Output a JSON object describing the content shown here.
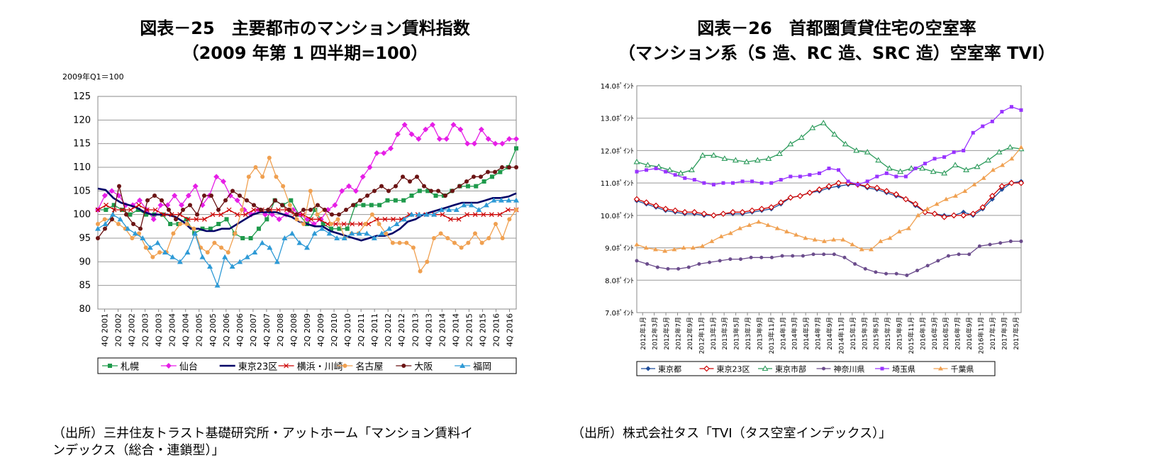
{
  "left": {
    "title1": "図表－25　主要都市のマンション賃料指数",
    "title2": "（2009 年第 1 四半期=100）",
    "unit": "2009年Q1＝100",
    "source_line1": "（出所）三井住友トラスト基礎研究所・アットホーム「マンション賃料イ",
    "source_line2": "ンデックス（総合・連鎖型）」"
  },
  "right": {
    "title1": "図表－26　首都圏賃貸住宅の空室率",
    "title2": "（マンション系（S 造、RC 造、SRC 造）空室率 TVI）",
    "source": "（出所）株式会社タス「TVI（タス空室インデックス）」"
  },
  "chart_data": [
    {
      "type": "line",
      "ylim": [
        80,
        125
      ],
      "yticks": [
        "80",
        "85",
        "90",
        "95",
        "100",
        "105",
        "110",
        "115",
        "120",
        "125"
      ],
      "xticks": [
        "4Q 2001",
        "2Q 2002",
        "4Q 2002",
        "2Q 2003",
        "4Q 2003",
        "2Q 2004",
        "4Q 2004",
        "2Q 2005",
        "4Q 2005",
        "2Q 2006",
        "4Q 2006",
        "2Q 2007",
        "4Q 2007",
        "2Q 2008",
        "4Q 2008",
        "2Q 2009",
        "4Q 2009",
        "2Q 2010",
        "4Q 2010",
        "2Q 2011",
        "4Q 2011",
        "2Q 2012",
        "4Q 2012",
        "2Q 2013",
        "4Q 2013",
        "2Q 2014",
        "4Q 2014",
        "2Q 2015",
        "4Q 2015",
        "2Q 2016",
        "4Q 2016"
      ],
      "grid": true,
      "legend_position": "bottom",
      "series": [
        {
          "name": "札幌",
          "color": "#1e9a4b",
          "marker": "square",
          "values": [
            101,
            101,
            102,
            101,
            100,
            101,
            100,
            100,
            100,
            98,
            98,
            99,
            96,
            97,
            97,
            98,
            99,
            96,
            95,
            95,
            97,
            99,
            103,
            102,
            103,
            100,
            98,
            101,
            98,
            97,
            97,
            97,
            102,
            102,
            102,
            102,
            103,
            103,
            103,
            104,
            105,
            105,
            104,
            104,
            105,
            106,
            106,
            106,
            107,
            108,
            109,
            110,
            114
          ]
        },
        {
          "name": "仙台",
          "color": "#e61ee6",
          "marker": "diamond",
          "values": [
            101,
            104,
            105,
            104,
            102,
            102,
            103,
            101,
            99,
            102,
            102,
            104,
            102,
            104,
            106,
            102,
            104,
            108,
            107,
            104,
            103,
            101,
            100,
            101,
            100,
            100,
            99,
            100,
            101,
            100,
            99,
            98,
            99,
            101,
            102,
            105,
            106,
            105,
            108,
            110,
            113,
            113,
            114,
            117,
            119,
            117,
            116,
            118,
            119,
            116,
            116,
            119,
            118,
            115,
            115,
            118,
            116,
            115,
            115,
            116,
            116
          ]
        },
        {
          "name": "東京23区",
          "color": "#000066",
          "marker": "none",
          "values": [
            105.5,
            105.2,
            103.5,
            102.5,
            102,
            101.5,
            100.5,
            100,
            100,
            100,
            99.5,
            98.5,
            97,
            97,
            96.5,
            96.5,
            97,
            97,
            98,
            99,
            100,
            100.5,
            100.5,
            100.5,
            100,
            99.5,
            98.5,
            98,
            97.5,
            97.5,
            96.5,
            96,
            95.5,
            95,
            94.5,
            95,
            95.5,
            95.5,
            96,
            97,
            98.5,
            99,
            100,
            100.5,
            101,
            101.5,
            102,
            102.5,
            102.5,
            102.5,
            103,
            103.5,
            103.5,
            103.8,
            104.5
          ]
        },
        {
          "name": "横浜・川崎",
          "color": "#cc0000",
          "marker": "x",
          "values": [
            101,
            102,
            101,
            101,
            101,
            102,
            101,
            101,
            100,
            100,
            100,
            99,
            99,
            99,
            100,
            100,
            101,
            100,
            100,
            101,
            101,
            101,
            101,
            101,
            100,
            100,
            99,
            99,
            98,
            98,
            98,
            98,
            98,
            98,
            99,
            99,
            99,
            99,
            100,
            100,
            100,
            100,
            100,
            99,
            99,
            100,
            100,
            100,
            100,
            100,
            101,
            101
          ]
        },
        {
          "name": "名古屋",
          "color": "#f0a050",
          "marker": "circle",
          "values": [
            98,
            99,
            99,
            98,
            97,
            95,
            96,
            93,
            91,
            92,
            92,
            96,
            98,
            98,
            97,
            93,
            92,
            94,
            93,
            92,
            96,
            101,
            108,
            110,
            108,
            112,
            108,
            106,
            102,
            99,
            98,
            105,
            100,
            101,
            98,
            99,
            95,
            96,
            96,
            98,
            100,
            98,
            96,
            94,
            94,
            94,
            93,
            88,
            90,
            95,
            96,
            95,
            94,
            93,
            94,
            96,
            94,
            95,
            98,
            95,
            99,
            101
          ]
        },
        {
          "name": "大阪",
          "color": "#6b1414",
          "marker": "circle",
          "values": [
            95,
            97,
            99,
            106,
            100,
            98,
            97,
            103,
            104,
            103,
            101,
            99,
            101,
            102,
            100,
            104,
            104,
            101,
            103,
            105,
            104,
            103,
            102,
            101,
            101,
            103,
            102,
            101,
            100,
            101,
            101,
            102,
            101,
            100,
            100,
            101,
            102,
            103,
            104,
            105,
            106,
            105,
            106,
            108,
            107,
            108,
            106,
            105,
            105,
            104,
            105,
            106,
            107,
            108,
            108,
            109,
            109,
            110,
            110,
            110
          ]
        },
        {
          "name": "福岡",
          "color": "#2e9ad6",
          "marker": "triangle",
          "values": [
            97,
            98,
            100,
            99,
            97,
            96,
            95,
            93,
            94,
            92,
            91,
            90,
            92,
            96,
            91,
            89,
            85,
            91,
            89,
            90,
            91,
            92,
            94,
            93,
            90,
            95,
            96,
            94,
            93,
            96,
            97,
            96,
            95,
            95,
            96,
            96,
            96,
            95,
            96,
            97,
            98,
            99,
            100,
            100,
            100,
            100,
            101,
            101,
            101,
            102,
            102,
            101,
            102,
            103,
            103,
            103,
            103
          ]
        }
      ]
    },
    {
      "type": "line",
      "ylim": [
        7.0,
        14.0
      ],
      "yticks": [
        "7.0ﾎﾟｲﾝﾄ",
        "8.0ﾎﾟｲﾝﾄ",
        "9.0ﾎﾟｲﾝﾄ",
        "10.0ﾎﾟｲﾝﾄ",
        "11.0ﾎﾟｲﾝﾄ",
        "12.0ﾎﾟｲﾝﾄ",
        "13.0ﾎﾟｲﾝﾄ",
        "14.0ﾎﾟｲﾝﾄ"
      ],
      "xticks": [
        "2012年1月",
        "2012年3月",
        "2012年5月",
        "2012年7月",
        "2012年9月",
        "2012年11月",
        "2013年1月",
        "2013年3月",
        "2013年5月",
        "2013年7月",
        "2013年9月",
        "2013年11月",
        "2014年1月",
        "2014年3月",
        "2014年5月",
        "2014年7月",
        "2014年9月",
        "2014年11月",
        "2015年1月",
        "2015年3月",
        "2015年5月",
        "2015年7月",
        "2015年9月",
        "2015年11月",
        "2016年1月",
        "2016年3月",
        "2016年5月",
        "2016年7月",
        "2016年9月",
        "2016年11月",
        "2017年1月",
        "2017年3月",
        "2017年5月"
      ],
      "grid": true,
      "legend_position": "bottom",
      "series": [
        {
          "name": "東京都",
          "color": "#1f4e9c",
          "marker": "diamond",
          "values": [
            10.45,
            10.35,
            10.25,
            10.15,
            10.1,
            10.05,
            10.05,
            10.0,
            10.0,
            10.05,
            10.05,
            10.05,
            10.1,
            10.15,
            10.2,
            10.35,
            10.55,
            10.6,
            10.7,
            10.75,
            10.85,
            10.9,
            10.95,
            10.95,
            10.85,
            10.8,
            10.7,
            10.6,
            10.5,
            10.3,
            10.1,
            10.05,
            10.0,
            10.0,
            10.1,
            10.0,
            10.2,
            10.5,
            10.8,
            11.0,
            11.05
          ]
        },
        {
          "name": "東京23区",
          "color": "#cc0000",
          "marker": "diamond-open",
          "values": [
            10.5,
            10.4,
            10.3,
            10.2,
            10.15,
            10.1,
            10.1,
            10.05,
            10.0,
            10.05,
            10.1,
            10.1,
            10.15,
            10.2,
            10.25,
            10.4,
            10.55,
            10.6,
            10.7,
            10.8,
            10.9,
            11.0,
            11.0,
            10.95,
            10.9,
            10.85,
            10.75,
            10.65,
            10.5,
            10.35,
            10.1,
            10.05,
            9.95,
            10.0,
            10.0,
            10.05,
            10.25,
            10.6,
            10.9,
            11.0,
            11.0
          ]
        },
        {
          "name": "東京市部",
          "color": "#2a9a5a",
          "marker": "triangle-open",
          "values": [
            11.65,
            11.55,
            11.5,
            11.4,
            11.3,
            11.4,
            11.85,
            11.85,
            11.75,
            11.7,
            11.65,
            11.7,
            11.75,
            11.9,
            12.2,
            12.4,
            12.7,
            12.85,
            12.5,
            12.2,
            12.0,
            11.95,
            11.7,
            11.45,
            11.35,
            11.45,
            11.45,
            11.35,
            11.3,
            11.55,
            11.4,
            11.5,
            11.7,
            11.95,
            12.1,
            12.05
          ]
        },
        {
          "name": "神奈川県",
          "color": "#6b4c8c",
          "marker": "circle",
          "values": [
            8.6,
            8.5,
            8.4,
            8.35,
            8.35,
            8.4,
            8.5,
            8.55,
            8.6,
            8.65,
            8.65,
            8.7,
            8.7,
            8.7,
            8.75,
            8.75,
            8.75,
            8.8,
            8.8,
            8.8,
            8.7,
            8.5,
            8.35,
            8.25,
            8.2,
            8.2,
            8.15,
            8.3,
            8.45,
            8.6,
            8.75,
            8.8,
            8.8,
            9.05,
            9.1,
            9.15,
            9.2,
            9.2
          ]
        },
        {
          "name": "埼玉県",
          "color": "#9933ff",
          "marker": "square",
          "values": [
            11.35,
            11.4,
            11.45,
            11.35,
            11.25,
            11.15,
            11.1,
            11.0,
            10.95,
            11.0,
            11.0,
            11.05,
            11.05,
            11.0,
            11.0,
            11.1,
            11.2,
            11.2,
            11.25,
            11.3,
            11.45,
            11.4,
            11.05,
            10.95,
            11.05,
            11.2,
            11.3,
            11.2,
            11.2,
            11.45,
            11.6,
            11.75,
            11.8,
            11.95,
            12.0,
            12.55,
            12.75,
            12.9,
            13.2,
            13.35,
            13.25
          ]
        },
        {
          "name": "千葉県",
          "color": "#f0a050",
          "marker": "triangle",
          "values": [
            9.1,
            9.0,
            8.95,
            8.9,
            8.95,
            9.0,
            9.0,
            9.05,
            9.2,
            9.35,
            9.45,
            9.6,
            9.7,
            9.8,
            9.7,
            9.6,
            9.5,
            9.4,
            9.3,
            9.25,
            9.2,
            9.25,
            9.25,
            9.1,
            8.95,
            8.95,
            9.2,
            9.3,
            9.5,
            9.6,
            10.0,
            10.2,
            10.35,
            10.5,
            10.6,
            10.75,
            10.95,
            11.15,
            11.4,
            11.55,
            11.75,
            12.1
          ]
        }
      ]
    }
  ]
}
